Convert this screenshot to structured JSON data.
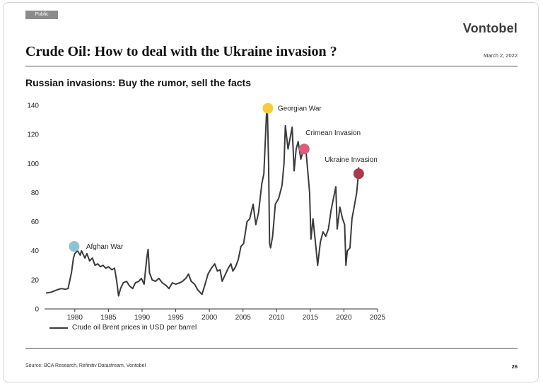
{
  "header": {
    "classification": "Public",
    "brand": "Vontobel",
    "title": "Crude Oil: How to deal with the Ukraine invasion ?",
    "date": "March 2, 2022"
  },
  "footer": {
    "source": "Source: BCA Research, Refinitiv Datastream, Vontobel",
    "page_number": "26"
  },
  "chart_data": {
    "type": "line",
    "title": "Russian invasions: Buy the rumor, sell the facts",
    "xlabel": "",
    "ylabel": "",
    "xlim": [
      1975.5,
      2025
    ],
    "ylim": [
      0,
      140
    ],
    "x_ticks": [
      "1980",
      "1985",
      "1990",
      "1995",
      "2000",
      "2005",
      "2010",
      "2015",
      "2020",
      "2025"
    ],
    "y_ticks": [
      "0",
      "20",
      "40",
      "60",
      "80",
      "100",
      "120",
      "140"
    ],
    "grid": false,
    "legend_position": "bottom-left",
    "series": [
      {
        "name": "Crude oil Brent prices in USD per barrel",
        "color": "#3a3a3a",
        "points": [
          [
            1975.8,
            11
          ],
          [
            1976.5,
            11.5
          ],
          [
            1977,
            12.5
          ],
          [
            1977.6,
            13.5
          ],
          [
            1978,
            14
          ],
          [
            1978.6,
            13.5
          ],
          [
            1979,
            14
          ],
          [
            1979.5,
            25
          ],
          [
            1979.8,
            35
          ],
          [
            1980,
            38
          ],
          [
            1980.4,
            40
          ],
          [
            1980.8,
            37
          ],
          [
            1981,
            40
          ],
          [
            1981.5,
            35
          ],
          [
            1981.8,
            38
          ],
          [
            1982.2,
            33
          ],
          [
            1982.6,
            35
          ],
          [
            1983,
            30
          ],
          [
            1983.4,
            31
          ],
          [
            1983.8,
            29
          ],
          [
            1984.2,
            30
          ],
          [
            1984.6,
            28
          ],
          [
            1985,
            29
          ],
          [
            1985.5,
            27
          ],
          [
            1985.9,
            28
          ],
          [
            1986.2,
            20
          ],
          [
            1986.5,
            9
          ],
          [
            1986.8,
            14
          ],
          [
            1987.2,
            18
          ],
          [
            1987.7,
            19
          ],
          [
            1988.1,
            16
          ],
          [
            1988.6,
            14
          ],
          [
            1989,
            18
          ],
          [
            1989.5,
            19
          ],
          [
            1989.9,
            21
          ],
          [
            1990.3,
            17
          ],
          [
            1990.7,
            35
          ],
          [
            1990.9,
            41
          ],
          [
            1991.1,
            25
          ],
          [
            1991.5,
            20
          ],
          [
            1992,
            19
          ],
          [
            1992.5,
            21
          ],
          [
            1993,
            18
          ],
          [
            1993.6,
            16
          ],
          [
            1994,
            14
          ],
          [
            1994.5,
            18
          ],
          [
            1995,
            17
          ],
          [
            1995.6,
            18
          ],
          [
            1996,
            19
          ],
          [
            1996.5,
            21
          ],
          [
            1996.9,
            24
          ],
          [
            1997.3,
            19
          ],
          [
            1997.8,
            17
          ],
          [
            1998.3,
            13
          ],
          [
            1998.9,
            10
          ],
          [
            1999.3,
            16
          ],
          [
            1999.8,
            24
          ],
          [
            2000.3,
            28
          ],
          [
            2000.8,
            31
          ],
          [
            2001.2,
            26
          ],
          [
            2001.6,
            27
          ],
          [
            2001.9,
            19
          ],
          [
            2002.3,
            23
          ],
          [
            2002.8,
            28
          ],
          [
            2003.2,
            31
          ],
          [
            2003.5,
            26
          ],
          [
            2003.9,
            29
          ],
          [
            2004.3,
            34
          ],
          [
            2004.7,
            43
          ],
          [
            2005.1,
            45
          ],
          [
            2005.6,
            60
          ],
          [
            2006,
            62
          ],
          [
            2006.5,
            72
          ],
          [
            2006.9,
            58
          ],
          [
            2007.3,
            66
          ],
          [
            2007.8,
            86
          ],
          [
            2008.1,
            93
          ],
          [
            2008.5,
            135
          ],
          [
            2008.6,
            140
          ],
          [
            2008.8,
            100
          ],
          [
            2008.95,
            45
          ],
          [
            2009.1,
            42
          ],
          [
            2009.4,
            50
          ],
          [
            2009.8,
            72
          ],
          [
            2010.3,
            76
          ],
          [
            2010.8,
            85
          ],
          [
            2011.1,
            100
          ],
          [
            2011.3,
            126
          ],
          [
            2011.7,
            110
          ],
          [
            2012.1,
            120
          ],
          [
            2012.3,
            125
          ],
          [
            2012.6,
            95
          ],
          [
            2012.9,
            110
          ],
          [
            2013.2,
            115
          ],
          [
            2013.6,
            103
          ],
          [
            2014,
            110
          ],
          [
            2014.4,
            107
          ],
          [
            2014.9,
            80
          ],
          [
            2015.1,
            48
          ],
          [
            2015.4,
            62
          ],
          [
            2015.8,
            44
          ],
          [
            2016.1,
            30
          ],
          [
            2016.5,
            46
          ],
          [
            2016.9,
            53
          ],
          [
            2017.3,
            50
          ],
          [
            2017.7,
            55
          ],
          [
            2018.1,
            68
          ],
          [
            2018.8,
            84
          ],
          [
            2019,
            55
          ],
          [
            2019.4,
            70
          ],
          [
            2019.8,
            62
          ],
          [
            2020.1,
            58
          ],
          [
            2020.3,
            30
          ],
          [
            2020.5,
            40
          ],
          [
            2020.9,
            42
          ],
          [
            2021.2,
            62
          ],
          [
            2021.6,
            72
          ],
          [
            2021.9,
            80
          ],
          [
            2022.1,
            90
          ],
          [
            2022.2,
            97
          ]
        ]
      }
    ],
    "annotations": [
      {
        "label": "Afghan War",
        "x": 1979.9,
        "y": 43,
        "marker_color": "#8ec3d4"
      },
      {
        "label": "Georgian War",
        "x": 2008.7,
        "y": 138,
        "marker_color": "#f5cc3a"
      },
      {
        "label": "Crimean Invasion",
        "x": 2014.1,
        "y": 110,
        "marker_color": "#de5c7a"
      },
      {
        "label": "Ukraine Invasion",
        "x": 2022.2,
        "y": 93,
        "marker_color": "#a83a4a"
      }
    ]
  }
}
